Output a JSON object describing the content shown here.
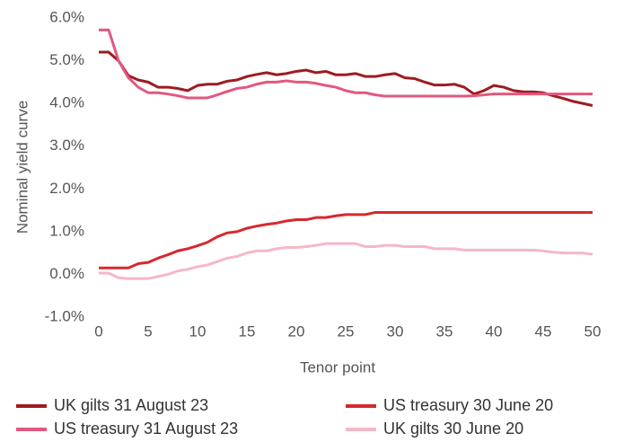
{
  "chart_data": {
    "type": "line",
    "x_label": "Tenor point",
    "y_label": "Nominal yield curve",
    "x": [
      0,
      1,
      2,
      3,
      4,
      5,
      6,
      7,
      8,
      9,
      10,
      11,
      12,
      13,
      14,
      15,
      16,
      17,
      18,
      19,
      20,
      21,
      22,
      23,
      24,
      25,
      26,
      27,
      28,
      29,
      30,
      31,
      32,
      33,
      34,
      35,
      36,
      37,
      38,
      39,
      40,
      41,
      42,
      43,
      44,
      45,
      46,
      47,
      48,
      49,
      50
    ],
    "xlim": [
      0,
      50
    ],
    "xticks": [
      0,
      5,
      10,
      15,
      20,
      25,
      30,
      35,
      40,
      45,
      50
    ],
    "ylim": [
      -1,
      6
    ],
    "yticks": [
      {
        "value": -1,
        "label": "-1.0%"
      },
      {
        "value": 0,
        "label": "0.0%"
      },
      {
        "value": 1,
        "label": "1.0%"
      },
      {
        "value": 2,
        "label": "2.0%"
      },
      {
        "value": 3,
        "label": "3.0%"
      },
      {
        "value": 4,
        "label": "4.0%"
      },
      {
        "value": 5,
        "label": "5.0%"
      },
      {
        "value": 6,
        "label": "6.0%"
      }
    ],
    "grid": false,
    "legend": "bottom",
    "series": [
      {
        "name": "UK gilts 31 August 23",
        "color": "#9e1b1f",
        "values": [
          5.2,
          5.2,
          5.0,
          4.65,
          4.55,
          4.5,
          4.38,
          4.38,
          4.35,
          4.3,
          4.42,
          4.45,
          4.45,
          4.52,
          4.55,
          4.63,
          4.68,
          4.72,
          4.67,
          4.7,
          4.75,
          4.78,
          4.72,
          4.75,
          4.67,
          4.67,
          4.7,
          4.63,
          4.63,
          4.67,
          4.7,
          4.6,
          4.58,
          4.5,
          4.43,
          4.43,
          4.45,
          4.38,
          4.22,
          4.3,
          4.42,
          4.38,
          4.3,
          4.27,
          4.27,
          4.25,
          4.18,
          4.12,
          4.05,
          4.0,
          3.95
        ]
      },
      {
        "name": "US treasury 30 June 20",
        "color": "#d7282f",
        "values": [
          0.15,
          0.15,
          0.15,
          0.15,
          0.25,
          0.28,
          0.38,
          0.46,
          0.55,
          0.6,
          0.67,
          0.75,
          0.88,
          0.97,
          1.0,
          1.08,
          1.13,
          1.17,
          1.2,
          1.25,
          1.28,
          1.28,
          1.33,
          1.33,
          1.37,
          1.4,
          1.4,
          1.4,
          1.45,
          1.45,
          1.45,
          1.45,
          1.45,
          1.45,
          1.45,
          1.45,
          1.45,
          1.45,
          1.45,
          1.45,
          1.45,
          1.45,
          1.45,
          1.45,
          1.45,
          1.45,
          1.45,
          1.45,
          1.45,
          1.45,
          1.45
        ]
      },
      {
        "name": "US treasury 31 August 23",
        "color": "#e2587f",
        "values": [
          5.72,
          5.72,
          5.0,
          4.6,
          4.38,
          4.25,
          4.25,
          4.22,
          4.18,
          4.13,
          4.13,
          4.13,
          4.2,
          4.28,
          4.35,
          4.38,
          4.45,
          4.5,
          4.5,
          4.53,
          4.5,
          4.5,
          4.47,
          4.42,
          4.38,
          4.3,
          4.25,
          4.25,
          4.2,
          4.17,
          4.17,
          4.17,
          4.17,
          4.17,
          4.17,
          4.17,
          4.17,
          4.17,
          4.18,
          4.2,
          4.22,
          4.22,
          4.22,
          4.22,
          4.22,
          4.22,
          4.22,
          4.22,
          4.22,
          4.22,
          4.22
        ]
      },
      {
        "name": "UK gilts 30 June 20",
        "color": "#f5b8c6",
        "values": [
          0.03,
          0.03,
          -0.08,
          -0.1,
          -0.1,
          -0.1,
          -0.05,
          0.0,
          0.08,
          0.12,
          0.18,
          0.22,
          0.3,
          0.38,
          0.42,
          0.5,
          0.55,
          0.55,
          0.6,
          0.63,
          0.63,
          0.65,
          0.68,
          0.72,
          0.72,
          0.72,
          0.72,
          0.65,
          0.65,
          0.68,
          0.68,
          0.65,
          0.65,
          0.65,
          0.6,
          0.6,
          0.6,
          0.57,
          0.57,
          0.57,
          0.57,
          0.57,
          0.57,
          0.57,
          0.57,
          0.55,
          0.52,
          0.5,
          0.5,
          0.5,
          0.47
        ]
      }
    ]
  }
}
